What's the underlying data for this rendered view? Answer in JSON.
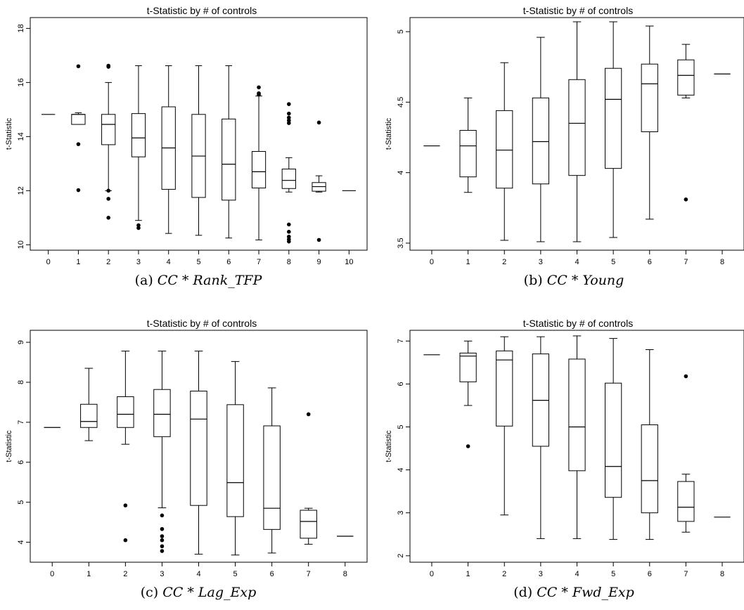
{
  "chart_data": [
    {
      "type": "boxplot",
      "title": "t-Statistic by # of controls",
      "ylabel": "t-Statistic",
      "caption": {
        "prefix": "(a) ",
        "math": "CC * Rank_TFP"
      },
      "categories": [
        "0",
        "1",
        "2",
        "3",
        "4",
        "5",
        "6",
        "7",
        "8",
        "9",
        "10"
      ],
      "ylim": [
        9.8,
        18.4
      ],
      "yticks": [
        10,
        12,
        14,
        16,
        18
      ],
      "boxes": [
        {
          "x": "0",
          "min": 14.82,
          "q1": 14.82,
          "median": 14.82,
          "q3": 14.82,
          "max": 14.82,
          "outliers": []
        },
        {
          "x": "1",
          "min": 14.45,
          "q1": 14.45,
          "median": 14.82,
          "q3": 14.82,
          "max": 14.88,
          "outliers": [
            16.6,
            13.72,
            12.02
          ]
        },
        {
          "x": "2",
          "min": 12.0,
          "q1": 13.7,
          "median": 14.45,
          "q3": 14.82,
          "max": 16.0,
          "outliers": [
            16.62,
            16.58,
            12.0,
            11.7,
            11.0
          ]
        },
        {
          "x": "3",
          "min": 10.9,
          "q1": 13.25,
          "median": 13.95,
          "q3": 14.85,
          "max": 16.62,
          "outliers": [
            10.72,
            10.62
          ]
        },
        {
          "x": "4",
          "min": 10.42,
          "q1": 12.05,
          "median": 13.58,
          "q3": 15.1,
          "max": 16.62,
          "outliers": []
        },
        {
          "x": "5",
          "min": 10.35,
          "q1": 11.75,
          "median": 13.28,
          "q3": 14.82,
          "max": 16.62,
          "outliers": []
        },
        {
          "x": "6",
          "min": 10.25,
          "q1": 11.65,
          "median": 12.98,
          "q3": 14.65,
          "max": 16.62,
          "outliers": []
        },
        {
          "x": "7",
          "min": 10.18,
          "q1": 12.1,
          "median": 12.7,
          "q3": 13.45,
          "max": 15.5,
          "outliers": [
            15.82,
            15.6,
            15.55
          ]
        },
        {
          "x": "8",
          "min": 11.95,
          "q1": 12.08,
          "median": 12.38,
          "q3": 12.8,
          "max": 13.22,
          "outliers": [
            15.2,
            14.85,
            14.7,
            14.6,
            14.5,
            10.75,
            10.48,
            10.3,
            10.2,
            10.12
          ]
        },
        {
          "x": "9",
          "min": 11.95,
          "q1": 11.98,
          "median": 12.15,
          "q3": 12.3,
          "max": 12.55,
          "outliers": [
            14.52,
            10.18
          ]
        },
        {
          "x": "10",
          "min": 12.0,
          "q1": 12.0,
          "median": 12.0,
          "q3": 12.0,
          "max": 12.0,
          "outliers": []
        }
      ]
    },
    {
      "type": "boxplot",
      "title": "t-Statistic by # of controls",
      "ylabel": "t-Statistic",
      "caption": {
        "prefix": "(b) ",
        "math": "CC * Young"
      },
      "categories": [
        "0",
        "1",
        "2",
        "3",
        "4",
        "5",
        "6",
        "7",
        "8"
      ],
      "ylim": [
        3.45,
        5.1
      ],
      "yticks": [
        3.5,
        4,
        4.5,
        5
      ],
      "boxes": [
        {
          "x": "0",
          "min": 4.19,
          "q1": 4.19,
          "median": 4.19,
          "q3": 4.19,
          "max": 4.19,
          "outliers": []
        },
        {
          "x": "1",
          "min": 3.86,
          "q1": 3.97,
          "median": 4.19,
          "q3": 4.3,
          "max": 4.53,
          "outliers": []
        },
        {
          "x": "2",
          "min": 3.52,
          "q1": 3.89,
          "median": 4.16,
          "q3": 4.44,
          "max": 4.78,
          "outliers": []
        },
        {
          "x": "3",
          "min": 3.51,
          "q1": 3.92,
          "median": 4.22,
          "q3": 4.53,
          "max": 4.96,
          "outliers": []
        },
        {
          "x": "4",
          "min": 3.51,
          "q1": 3.98,
          "median": 4.35,
          "q3": 4.66,
          "max": 5.07,
          "outliers": []
        },
        {
          "x": "5",
          "min": 3.54,
          "q1": 4.03,
          "median": 4.52,
          "q3": 4.74,
          "max": 5.07,
          "outliers": []
        },
        {
          "x": "6",
          "min": 3.67,
          "q1": 4.29,
          "median": 4.63,
          "q3": 4.77,
          "max": 5.04,
          "outliers": []
        },
        {
          "x": "7",
          "min": 4.53,
          "q1": 4.55,
          "median": 4.69,
          "q3": 4.8,
          "max": 4.91,
          "outliers": [
            3.81
          ]
        },
        {
          "x": "8",
          "min": 4.7,
          "q1": 4.7,
          "median": 4.7,
          "q3": 4.7,
          "max": 4.7,
          "outliers": []
        }
      ]
    },
    {
      "type": "boxplot",
      "title": "t-Statistic by # of controls",
      "ylabel": "t-Statistic",
      "caption": {
        "prefix": "(c) ",
        "math": "CC * Lag_Exp"
      },
      "categories": [
        "0",
        "1",
        "2",
        "3",
        "4",
        "5",
        "6",
        "7",
        "8"
      ],
      "ylim": [
        3.5,
        9.3
      ],
      "yticks": [
        4,
        5,
        6,
        7,
        8,
        9
      ],
      "boxes": [
        {
          "x": "0",
          "min": 6.87,
          "q1": 6.87,
          "median": 6.87,
          "q3": 6.87,
          "max": 6.87,
          "outliers": []
        },
        {
          "x": "1",
          "min": 6.54,
          "q1": 6.87,
          "median": 7.02,
          "q3": 7.45,
          "max": 8.35,
          "outliers": []
        },
        {
          "x": "2",
          "min": 6.45,
          "q1": 6.87,
          "median": 7.2,
          "q3": 7.64,
          "max": 8.78,
          "outliers": [
            4.92,
            4.05
          ]
        },
        {
          "x": "3",
          "min": 4.86,
          "q1": 6.64,
          "median": 7.2,
          "q3": 7.82,
          "max": 8.78,
          "outliers": [
            4.67,
            4.33,
            4.15,
            4.05,
            3.9,
            3.78
          ]
        },
        {
          "x": "4",
          "min": 3.7,
          "q1": 4.92,
          "median": 7.08,
          "q3": 7.78,
          "max": 8.78,
          "outliers": []
        },
        {
          "x": "5",
          "min": 3.68,
          "q1": 4.64,
          "median": 5.49,
          "q3": 7.44,
          "max": 8.52,
          "outliers": []
        },
        {
          "x": "6",
          "min": 3.73,
          "q1": 4.32,
          "median": 4.85,
          "q3": 6.91,
          "max": 7.86,
          "outliers": []
        },
        {
          "x": "7",
          "min": 3.95,
          "q1": 4.1,
          "median": 4.52,
          "q3": 4.8,
          "max": 4.85,
          "outliers": [
            7.2
          ]
        },
        {
          "x": "8",
          "min": 4.15,
          "q1": 4.15,
          "median": 4.15,
          "q3": 4.15,
          "max": 4.15,
          "outliers": []
        }
      ]
    },
    {
      "type": "boxplot",
      "title": "t-Statistic by # of controls",
      "ylabel": "t-Statistic",
      "caption": {
        "prefix": "(d) ",
        "math": "CC * Fwd_Exp"
      },
      "categories": [
        "0",
        "1",
        "2",
        "3",
        "4",
        "5",
        "6",
        "7",
        "8"
      ],
      "ylim": [
        1.85,
        7.25
      ],
      "yticks": [
        2,
        3,
        4,
        5,
        6,
        7
      ],
      "boxes": [
        {
          "x": "0",
          "min": 6.68,
          "q1": 6.68,
          "median": 6.68,
          "q3": 6.68,
          "max": 6.68,
          "outliers": []
        },
        {
          "x": "1",
          "min": 5.5,
          "q1": 6.05,
          "median": 6.65,
          "q3": 6.72,
          "max": 7.0,
          "outliers": [
            4.55
          ]
        },
        {
          "x": "2",
          "min": 2.95,
          "q1": 5.02,
          "median": 6.56,
          "q3": 6.77,
          "max": 7.1,
          "outliers": []
        },
        {
          "x": "3",
          "min": 2.4,
          "q1": 4.55,
          "median": 5.62,
          "q3": 6.7,
          "max": 7.1,
          "outliers": []
        },
        {
          "x": "4",
          "min": 2.4,
          "q1": 3.98,
          "median": 5.0,
          "q3": 6.58,
          "max": 7.12,
          "outliers": []
        },
        {
          "x": "5",
          "min": 2.38,
          "q1": 3.36,
          "median": 4.08,
          "q3": 6.02,
          "max": 7.06,
          "outliers": []
        },
        {
          "x": "6",
          "min": 2.38,
          "q1": 3.0,
          "median": 3.75,
          "q3": 5.05,
          "max": 6.8,
          "outliers": []
        },
        {
          "x": "7",
          "min": 2.55,
          "q1": 2.8,
          "median": 3.13,
          "q3": 3.73,
          "max": 3.9,
          "outliers": [
            6.18
          ]
        },
        {
          "x": "8",
          "min": 2.9,
          "q1": 2.9,
          "median": 2.9,
          "q3": 2.9,
          "max": 2.9,
          "outliers": []
        }
      ]
    }
  ]
}
